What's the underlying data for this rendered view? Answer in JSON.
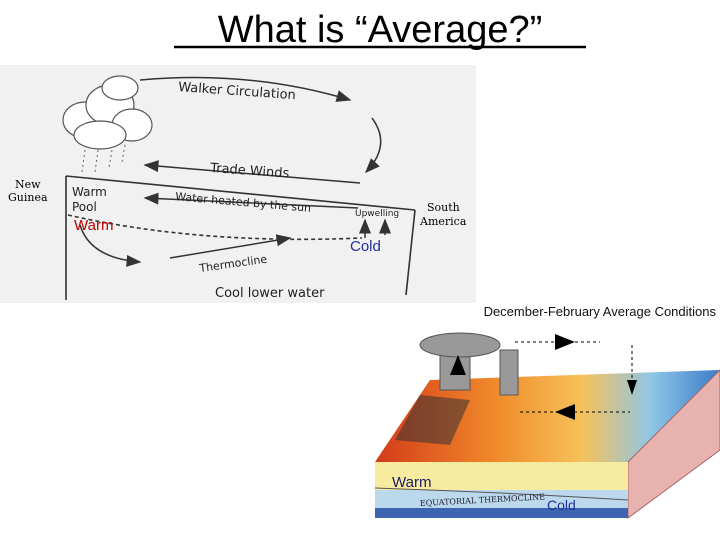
{
  "title": "What is “Average?”",
  "diagram1": {
    "walker": "Walker Circulation",
    "trade_winds": "Trade Winds",
    "new_guinea": [
      "New",
      "Guinea"
    ],
    "warm_pool": [
      "Warm",
      "Pool"
    ],
    "water_heated": "Water heated by the sun",
    "upwelling": "Upwelling",
    "south_america": [
      "South",
      "America"
    ],
    "warm": "Warm",
    "cold": "Cold",
    "thermocline": "Thermocline",
    "cool_lower_water": "Cool lower water"
  },
  "diagram2": {
    "caption": "December-February Average Conditions",
    "warm": "Warm",
    "thermocline": "EQUATORIAL THERMOCLINE",
    "cold": "Cold"
  }
}
